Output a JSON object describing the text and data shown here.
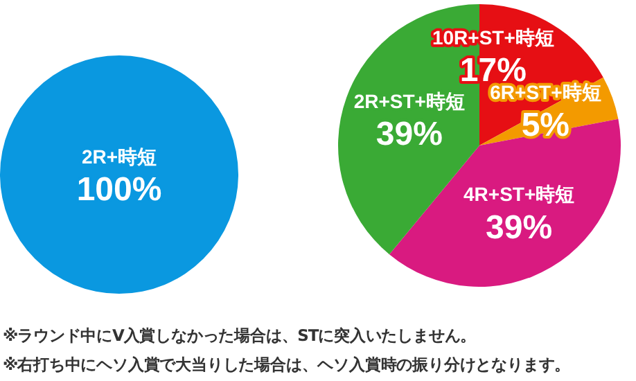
{
  "chart_data": [
    {
      "type": "pie",
      "categories": [
        "2R+時短"
      ],
      "values": [
        100
      ],
      "colors": [
        "#0a98e0"
      ],
      "value_labels": [
        "100%"
      ],
      "legend": false
    },
    {
      "type": "pie",
      "categories": [
        "10R+ST+時短",
        "6R+ST+時短",
        "4R+ST+時短",
        "2R+ST+時短"
      ],
      "values": [
        17,
        5,
        39,
        39
      ],
      "colors": [
        "#e60f14",
        "#f39a00",
        "#d91a80",
        "#3aaa35"
      ],
      "value_labels": [
        "17%",
        "5%",
        "39%",
        "39%"
      ],
      "legend": false,
      "annotations": [
        "※ラウンド中にV入賞しなかった場合は、STに突入いたしません。",
        "※右打ち中にヘソ入賞で大当りした場合は、ヘソ入賞時の振り分けとなります。"
      ]
    }
  ]
}
